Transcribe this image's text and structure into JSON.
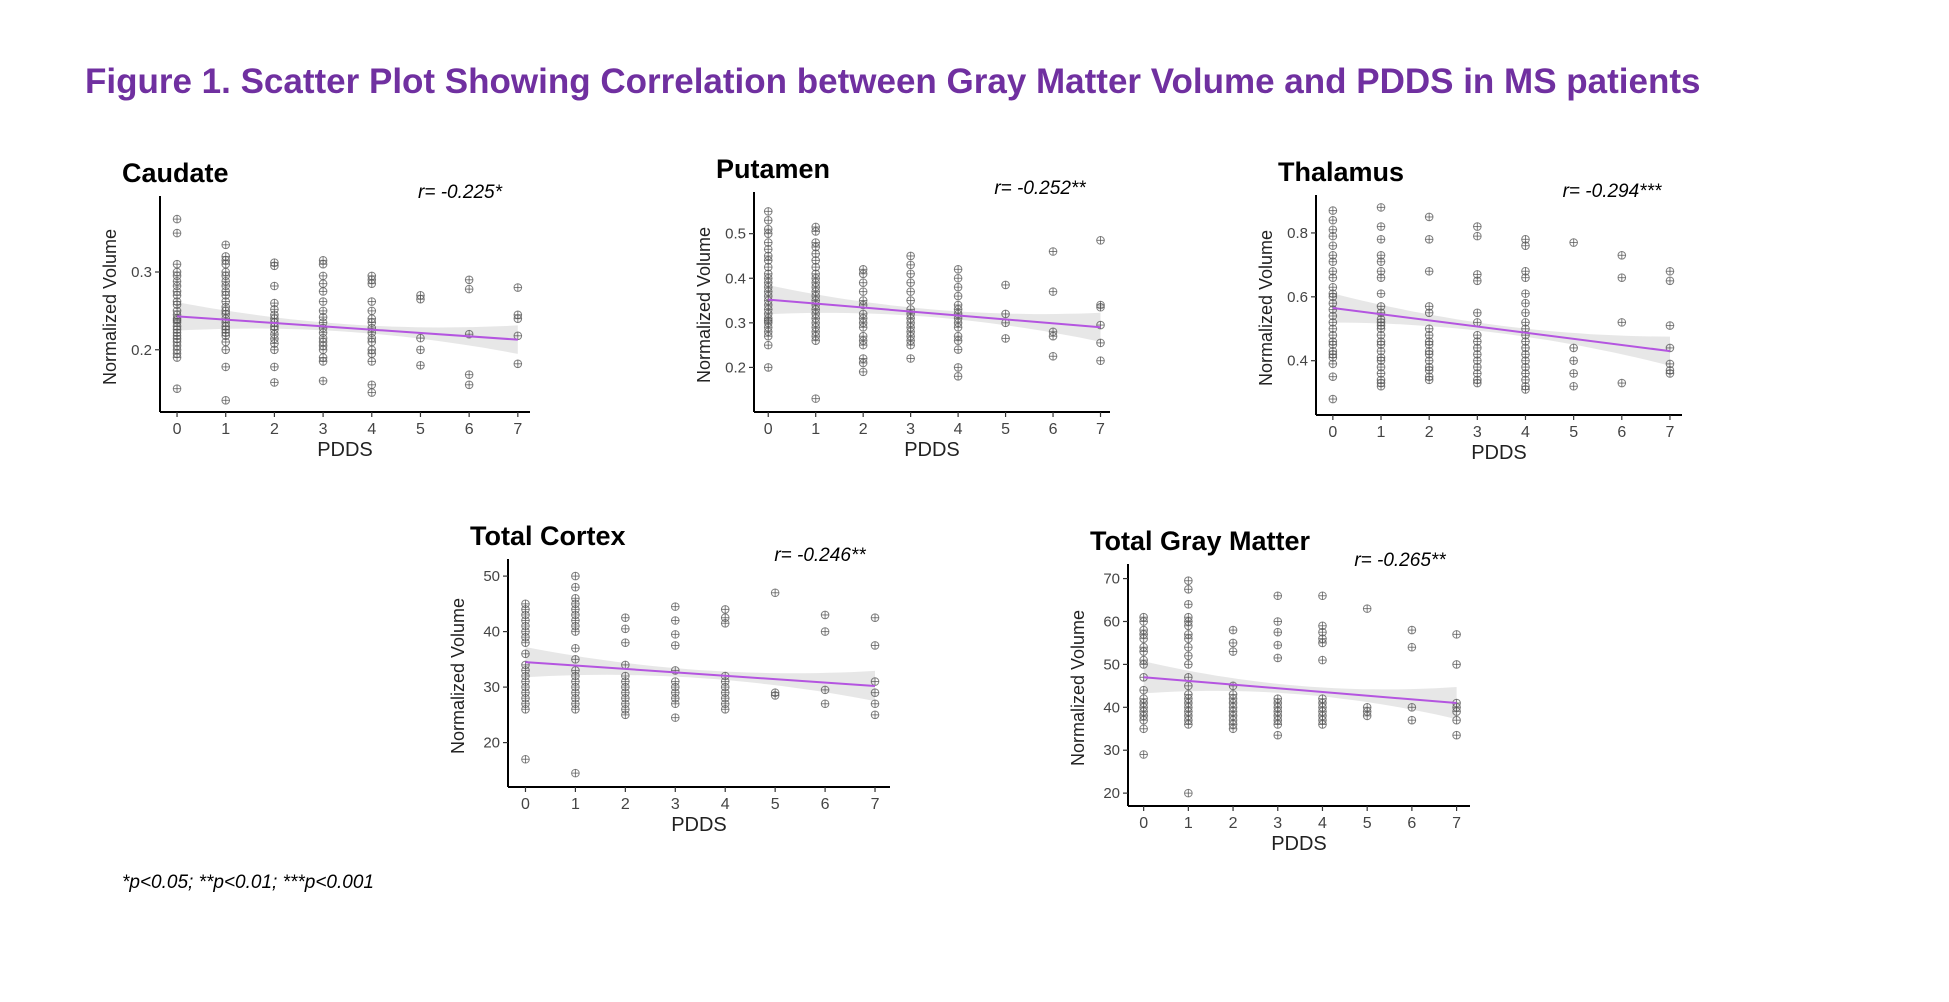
{
  "figure_title": "Figure 1. Scatter Plot Showing Correlation between Gray Matter Volume and PDDS in MS patients",
  "footnote": "*p<0.05; **p<0.01; ***p<0.001",
  "colors": {
    "title": "#7030a0",
    "regression_line": "#b455e0",
    "confidence_band": "#e3e3e3",
    "points": "#555555"
  },
  "chart_data": [
    {
      "id": "caudate",
      "type": "scatter",
      "title": "Caudate",
      "xlabel": "PDDS",
      "ylabel": "Normalized Volume",
      "r_label": "r= -0.225*",
      "xlim": [
        -0.35,
        7.25
      ],
      "ylim": [
        0.12,
        0.39
      ],
      "xticks": [
        0,
        1,
        2,
        3,
        4,
        5,
        6,
        7
      ],
      "yticks": [
        0.2,
        0.3
      ],
      "fit": {
        "x": [
          0,
          7
        ],
        "y": [
          0.243,
          0.213
        ]
      },
      "points": [
        {
          "x": 0,
          "values": [
            0.368,
            0.35,
            0.31,
            0.3,
            0.295,
            0.288,
            0.282,
            0.275,
            0.27,
            0.262,
            0.258,
            0.25,
            0.245,
            0.24,
            0.238,
            0.235,
            0.23,
            0.226,
            0.222,
            0.218,
            0.214,
            0.21,
            0.205,
            0.2,
            0.195,
            0.19,
            0.15
          ]
        },
        {
          "x": 1,
          "values": [
            0.335,
            0.32,
            0.315,
            0.31,
            0.3,
            0.295,
            0.288,
            0.282,
            0.275,
            0.27,
            0.262,
            0.255,
            0.25,
            0.246,
            0.24,
            0.235,
            0.23,
            0.226,
            0.222,
            0.218,
            0.21,
            0.2,
            0.178,
            0.135
          ]
        },
        {
          "x": 2,
          "values": [
            0.312,
            0.308,
            0.282,
            0.26,
            0.252,
            0.245,
            0.24,
            0.235,
            0.23,
            0.226,
            0.22,
            0.214,
            0.208,
            0.2,
            0.178,
            0.158
          ]
        },
        {
          "x": 3,
          "values": [
            0.315,
            0.31,
            0.295,
            0.285,
            0.275,
            0.262,
            0.25,
            0.242,
            0.235,
            0.228,
            0.222,
            0.215,
            0.21,
            0.205,
            0.2,
            0.19,
            0.185,
            0.16
          ]
        },
        {
          "x": 4,
          "values": [
            0.295,
            0.29,
            0.285,
            0.262,
            0.25,
            0.24,
            0.235,
            0.228,
            0.222,
            0.215,
            0.21,
            0.2,
            0.195,
            0.185,
            0.155,
            0.145
          ]
        },
        {
          "x": 5,
          "values": [
            0.27,
            0.265,
            0.215,
            0.2,
            0.18
          ]
        },
        {
          "x": 6,
          "values": [
            0.29,
            0.278,
            0.22,
            0.168,
            0.155
          ]
        },
        {
          "x": 7,
          "values": [
            0.28,
            0.245,
            0.24,
            0.218,
            0.182
          ]
        }
      ]
    },
    {
      "id": "putamen",
      "type": "scatter",
      "title": "Putamen",
      "xlabel": "PDDS",
      "ylabel": "Normalized Volume",
      "r_label": "r= -0.252**",
      "xlim": [
        -0.3,
        7.2
      ],
      "ylim": [
        0.1,
        0.58
      ],
      "xticks": [
        0,
        1,
        2,
        3,
        4,
        5,
        6,
        7
      ],
      "yticks": [
        0.2,
        0.3,
        0.4,
        0.5
      ],
      "fit": {
        "x": [
          0,
          7
        ],
        "y": [
          0.352,
          0.29
        ]
      },
      "points": [
        {
          "x": 0,
          "values": [
            0.55,
            0.53,
            0.51,
            0.5,
            0.48,
            0.465,
            0.45,
            0.44,
            0.425,
            0.41,
            0.4,
            0.39,
            0.38,
            0.37,
            0.36,
            0.35,
            0.34,
            0.33,
            0.32,
            0.31,
            0.305,
            0.3,
            0.29,
            0.28,
            0.27,
            0.25,
            0.2
          ]
        },
        {
          "x": 1,
          "values": [
            0.515,
            0.505,
            0.48,
            0.47,
            0.455,
            0.44,
            0.425,
            0.41,
            0.4,
            0.39,
            0.38,
            0.37,
            0.36,
            0.35,
            0.34,
            0.33,
            0.32,
            0.31,
            0.3,
            0.29,
            0.28,
            0.27,
            0.26,
            0.13
          ]
        },
        {
          "x": 2,
          "values": [
            0.42,
            0.41,
            0.39,
            0.37,
            0.35,
            0.34,
            0.32,
            0.31,
            0.3,
            0.29,
            0.27,
            0.26,
            0.25,
            0.22,
            0.21,
            0.19
          ]
        },
        {
          "x": 3,
          "values": [
            0.45,
            0.43,
            0.41,
            0.39,
            0.37,
            0.35,
            0.33,
            0.32,
            0.31,
            0.3,
            0.29,
            0.28,
            0.27,
            0.26,
            0.25,
            0.22
          ]
        },
        {
          "x": 4,
          "values": [
            0.42,
            0.4,
            0.38,
            0.36,
            0.34,
            0.33,
            0.32,
            0.31,
            0.3,
            0.29,
            0.27,
            0.26,
            0.24,
            0.2,
            0.18
          ]
        },
        {
          "x": 5,
          "values": [
            0.385,
            0.32,
            0.3,
            0.265
          ]
        },
        {
          "x": 6,
          "values": [
            0.46,
            0.37,
            0.28,
            0.27,
            0.225
          ]
        },
        {
          "x": 7,
          "values": [
            0.485,
            0.34,
            0.335,
            0.295,
            0.255,
            0.215
          ]
        }
      ]
    },
    {
      "id": "thalamus",
      "type": "scatter",
      "title": "Thalamus",
      "xlabel": "PDDS",
      "ylabel": "Normalized Volume",
      "r_label": "r= -0.294***",
      "xlim": [
        -0.35,
        7.25
      ],
      "ylim": [
        0.23,
        0.9
      ],
      "xticks": [
        0,
        1,
        2,
        3,
        4,
        5,
        6,
        7
      ],
      "yticks": [
        0.4,
        0.6,
        0.8
      ],
      "fit": {
        "x": [
          0,
          7
        ],
        "y": [
          0.565,
          0.43
        ]
      },
      "points": [
        {
          "x": 0,
          "values": [
            0.87,
            0.84,
            0.81,
            0.79,
            0.76,
            0.73,
            0.71,
            0.68,
            0.66,
            0.63,
            0.61,
            0.6,
            0.58,
            0.56,
            0.54,
            0.52,
            0.5,
            0.48,
            0.46,
            0.45,
            0.43,
            0.42,
            0.41,
            0.39,
            0.35,
            0.28
          ]
        },
        {
          "x": 1,
          "values": [
            0.88,
            0.82,
            0.78,
            0.73,
            0.71,
            0.68,
            0.66,
            0.61,
            0.57,
            0.55,
            0.53,
            0.52,
            0.51,
            0.5,
            0.48,
            0.46,
            0.45,
            0.43,
            0.41,
            0.4,
            0.38,
            0.36,
            0.34,
            0.33,
            0.32
          ]
        },
        {
          "x": 2,
          "values": [
            0.85,
            0.78,
            0.68,
            0.57,
            0.55,
            0.5,
            0.48,
            0.46,
            0.45,
            0.43,
            0.42,
            0.4,
            0.38,
            0.37,
            0.35,
            0.34
          ]
        },
        {
          "x": 3,
          "values": [
            0.82,
            0.79,
            0.67,
            0.65,
            0.55,
            0.52,
            0.48,
            0.46,
            0.44,
            0.42,
            0.4,
            0.38,
            0.36,
            0.34,
            0.33
          ]
        },
        {
          "x": 4,
          "values": [
            0.78,
            0.76,
            0.68,
            0.66,
            0.61,
            0.58,
            0.55,
            0.52,
            0.5,
            0.48,
            0.46,
            0.44,
            0.42,
            0.4,
            0.38,
            0.36,
            0.34,
            0.32,
            0.31
          ]
        },
        {
          "x": 5,
          "values": [
            0.77,
            0.44,
            0.4,
            0.36,
            0.32
          ]
        },
        {
          "x": 6,
          "values": [
            0.73,
            0.66,
            0.52,
            0.33
          ]
        },
        {
          "x": 7,
          "values": [
            0.68,
            0.65,
            0.51,
            0.44,
            0.39,
            0.37,
            0.36
          ]
        }
      ]
    },
    {
      "id": "total-cortex",
      "type": "scatter",
      "title": "Total Cortex",
      "xlabel": "PDDS",
      "ylabel": "Normalized Volume",
      "r_label": "r= -0.246**",
      "xlim": [
        -0.35,
        7.3
      ],
      "ylim": [
        12,
        52
      ],
      "xticks": [
        0,
        1,
        2,
        3,
        4,
        5,
        6,
        7
      ],
      "yticks": [
        20,
        30,
        40,
        50
      ],
      "fit": {
        "x": [
          0,
          7
        ],
        "y": [
          34.5,
          30.2
        ]
      },
      "points": [
        {
          "x": 0,
          "values": [
            45,
            44,
            43,
            42,
            41,
            40,
            39,
            38,
            36,
            34,
            33,
            32,
            31,
            30,
            29,
            28,
            27,
            26,
            17
          ]
        },
        {
          "x": 1,
          "values": [
            50,
            48,
            46,
            45,
            44,
            43,
            42,
            41,
            40,
            37,
            35,
            33,
            32,
            31,
            30,
            29,
            28,
            27,
            26,
            14.5
          ]
        },
        {
          "x": 2,
          "values": [
            42.5,
            40.5,
            38,
            34,
            32,
            31,
            30,
            29,
            28,
            27,
            26,
            25
          ]
        },
        {
          "x": 3,
          "values": [
            44.5,
            42,
            39.5,
            37.5,
            33,
            31,
            30,
            29,
            28,
            27,
            24.5
          ]
        },
        {
          "x": 4,
          "values": [
            44,
            42.5,
            41.5,
            32,
            31,
            30,
            29,
            28,
            27,
            26
          ]
        },
        {
          "x": 5,
          "values": [
            47,
            29,
            28.5
          ]
        },
        {
          "x": 6,
          "values": [
            43,
            40,
            29.5,
            27
          ]
        },
        {
          "x": 7,
          "values": [
            42.5,
            37.5,
            31,
            29,
            27,
            25
          ]
        }
      ]
    },
    {
      "id": "total-gray-matter",
      "type": "scatter",
      "title": "Total Gray Matter",
      "xlabel": "PDDS",
      "ylabel": "Normalized Volume",
      "r_label": "r= -0.265**",
      "xlim": [
        -0.35,
        7.3
      ],
      "ylim": [
        17,
        72
      ],
      "xticks": [
        0,
        1,
        2,
        3,
        4,
        5,
        6,
        7
      ],
      "yticks": [
        20,
        30,
        40,
        50,
        60,
        70
      ],
      "fit": {
        "x": [
          0,
          7
        ],
        "y": [
          47,
          41
        ]
      },
      "points": [
        {
          "x": 0,
          "values": [
            61,
            60,
            58,
            57,
            56,
            54,
            53,
            51,
            50,
            47,
            44,
            42,
            41,
            40,
            39,
            38,
            37,
            35,
            29
          ]
        },
        {
          "x": 1,
          "values": [
            69.5,
            67.5,
            64,
            61,
            60,
            59,
            57,
            56,
            54,
            52,
            50,
            47,
            45,
            43,
            42,
            41,
            40,
            39,
            38,
            37,
            36,
            20
          ]
        },
        {
          "x": 2,
          "values": [
            58,
            55,
            53,
            45,
            43,
            42,
            41,
            40,
            39,
            38,
            37,
            36,
            35
          ]
        },
        {
          "x": 3,
          "values": [
            66,
            60,
            57.5,
            54.5,
            51.5,
            42,
            41,
            40,
            39,
            38,
            37,
            36,
            33.5
          ]
        },
        {
          "x": 4,
          "values": [
            66,
            59,
            57.5,
            56,
            55,
            51,
            42,
            41,
            40,
            39,
            38,
            37,
            36
          ]
        },
        {
          "x": 5,
          "values": [
            63,
            40,
            39,
            38
          ]
        },
        {
          "x": 6,
          "values": [
            58,
            54,
            40,
            37
          ]
        },
        {
          "x": 7,
          "values": [
            57,
            50,
            41,
            40,
            39,
            37,
            33.5
          ]
        }
      ]
    }
  ]
}
